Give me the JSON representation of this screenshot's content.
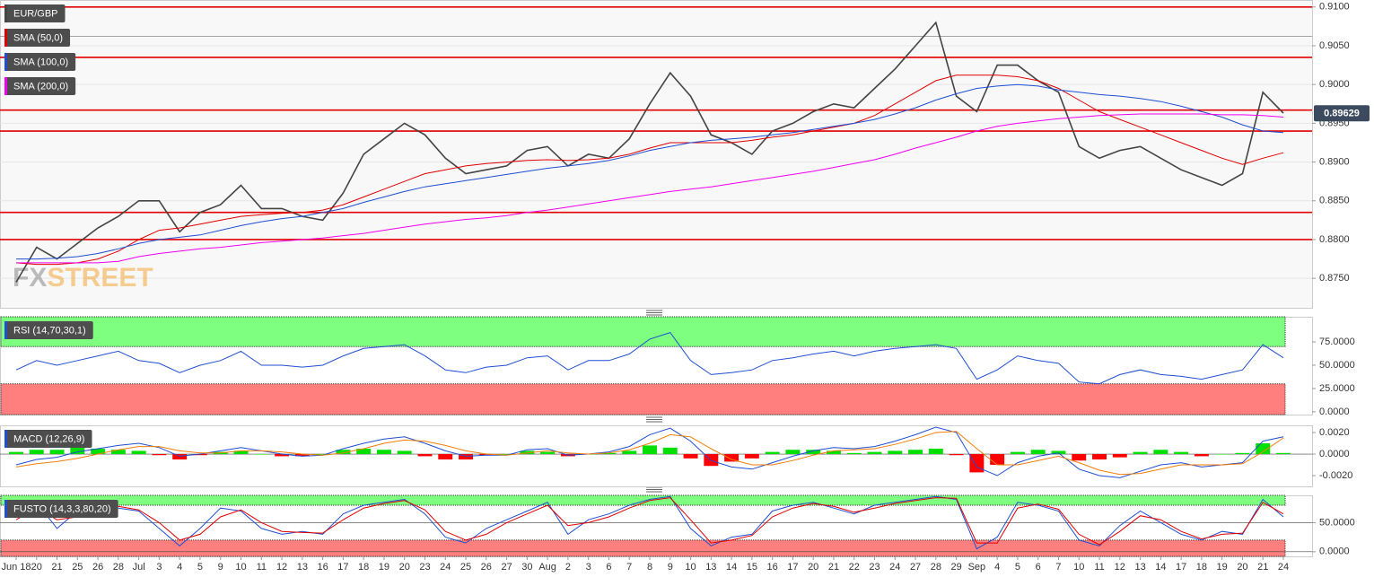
{
  "chart_data": [
    {
      "type": "line",
      "grid": true,
      "categories": [
        "Jun 18",
        "20",
        "21",
        "25",
        "26",
        "28",
        "Jul",
        "3",
        "4",
        "5",
        "9",
        "10",
        "11",
        "12",
        "13",
        "16",
        "17",
        "18",
        "19",
        "20",
        "23",
        "24",
        "25",
        "26",
        "27",
        "30",
        "Aug",
        "2",
        "3",
        "6",
        "7",
        "8",
        "9",
        "10",
        "13",
        "14",
        "15",
        "16",
        "17",
        "20",
        "21",
        "22",
        "23",
        "24",
        "27",
        "28",
        "29",
        "Sep",
        "4",
        "5",
        "6",
        "7",
        "10",
        "11",
        "12",
        "13",
        "14",
        "17",
        "18",
        "19",
        "20",
        "21",
        "24"
      ],
      "ylim": [
        0.8712,
        0.9109
      ],
      "yticks": [
        {
          "value": 0.91,
          "label": "0.9100"
        },
        {
          "value": 0.905,
          "label": "0.9050"
        },
        {
          "value": 0.9,
          "label": "0.9000"
        },
        {
          "value": 0.895,
          "label": "0.8950"
        },
        {
          "value": 0.89,
          "label": "0.8900"
        },
        {
          "value": 0.885,
          "label": "0.8850"
        },
        {
          "value": 0.88,
          "label": "0.8800"
        },
        {
          "value": 0.875,
          "label": "0.8750"
        }
      ],
      "levels": [
        0.91,
        0.9035,
        0.8967,
        0.894,
        0.8835,
        0.88
      ],
      "level_color": "#e00000",
      "ref_levels": [
        0.9062
      ],
      "ref_color": "#888888",
      "last_price": 0.89629,
      "watermark": [
        "FX",
        "STREET"
      ],
      "series": [
        {
          "name": "EUR/GBP",
          "color": "#444444",
          "values": [
            0.8745,
            0.879,
            0.8775,
            0.8795,
            0.8815,
            0.883,
            0.885,
            0.885,
            0.881,
            0.8835,
            0.8845,
            0.887,
            0.884,
            0.884,
            0.883,
            0.8825,
            0.886,
            0.891,
            0.893,
            0.895,
            0.8935,
            0.8905,
            0.8885,
            0.889,
            0.8895,
            0.8915,
            0.892,
            0.8895,
            0.891,
            0.8905,
            0.893,
            0.8975,
            0.9015,
            0.8985,
            0.8935,
            0.8925,
            0.891,
            0.894,
            0.895,
            0.8965,
            0.8975,
            0.897,
            0.8995,
            0.902,
            0.905,
            0.908,
            0.8985,
            0.8965,
            0.9025,
            0.9025,
            0.9005,
            0.899,
            0.892,
            0.8905,
            0.8915,
            0.892,
            0.8905,
            0.889,
            0.888,
            0.887,
            0.8885,
            0.899,
            0.8963
          ]
        },
        {
          "name": "SMA (50,0)",
          "color": "#e00000",
          "values": [
            0.877,
            0.8768,
            0.8768,
            0.877,
            0.8775,
            0.8785,
            0.88,
            0.8812,
            0.8815,
            0.882,
            0.8825,
            0.883,
            0.8832,
            0.8834,
            0.8835,
            0.8838,
            0.8845,
            0.8855,
            0.8865,
            0.8875,
            0.8885,
            0.889,
            0.8895,
            0.8898,
            0.89,
            0.8902,
            0.8903,
            0.8902,
            0.8903,
            0.8905,
            0.891,
            0.8918,
            0.8925,
            0.8925,
            0.8925,
            0.8925,
            0.8928,
            0.8932,
            0.8935,
            0.894,
            0.8945,
            0.895,
            0.896,
            0.8975,
            0.899,
            0.9005,
            0.9012,
            0.9012,
            0.9012,
            0.901,
            0.9005,
            0.8995,
            0.898,
            0.8965,
            0.8955,
            0.8945,
            0.8935,
            0.8925,
            0.8915,
            0.8905,
            0.8897,
            0.8905,
            0.8912
          ]
        },
        {
          "name": "SMA (100,0)",
          "color": "#1f4fd1",
          "values": [
            0.8775,
            0.8775,
            0.8776,
            0.8778,
            0.8782,
            0.8788,
            0.8795,
            0.88,
            0.8803,
            0.8806,
            0.8812,
            0.8818,
            0.8823,
            0.8827,
            0.883,
            0.8835,
            0.884,
            0.8848,
            0.8855,
            0.8862,
            0.8868,
            0.8872,
            0.8876,
            0.888,
            0.8884,
            0.8888,
            0.8892,
            0.8895,
            0.8898,
            0.8902,
            0.8908,
            0.8915,
            0.892,
            0.8925,
            0.8928,
            0.893,
            0.8932,
            0.8935,
            0.8938,
            0.8942,
            0.8946,
            0.895,
            0.8955,
            0.8962,
            0.897,
            0.898,
            0.8988,
            0.8995,
            0.8998,
            0.9,
            0.8998,
            0.8993,
            0.899,
            0.8987,
            0.8985,
            0.8982,
            0.8978,
            0.8972,
            0.8965,
            0.8958,
            0.8948,
            0.894,
            0.8938
          ]
        },
        {
          "name": "SMA (200,0)",
          "color": "#ee00ee",
          "values": [
            0.877,
            0.877,
            0.877,
            0.877,
            0.877,
            0.8772,
            0.8778,
            0.8782,
            0.8785,
            0.8788,
            0.879,
            0.8793,
            0.8796,
            0.8798,
            0.88,
            0.8802,
            0.8805,
            0.8808,
            0.8812,
            0.8816,
            0.882,
            0.8823,
            0.8826,
            0.8828,
            0.8831,
            0.8835,
            0.8838,
            0.8842,
            0.8846,
            0.885,
            0.8854,
            0.8858,
            0.8862,
            0.8865,
            0.8868,
            0.8872,
            0.8876,
            0.888,
            0.8884,
            0.8888,
            0.8893,
            0.8898,
            0.8903,
            0.891,
            0.8918,
            0.8925,
            0.8932,
            0.894,
            0.8946,
            0.895,
            0.8953,
            0.8956,
            0.8958,
            0.896,
            0.8961,
            0.8962,
            0.8962,
            0.8962,
            0.8962,
            0.8961,
            0.8961,
            0.896,
            0.8958
          ]
        }
      ]
    },
    {
      "type": "line",
      "title": "RSI (14,70,30,1)",
      "ylim": [
        -3,
        102
      ],
      "yticks": [
        {
          "value": 75,
          "label": "75.0000"
        },
        {
          "value": 50,
          "label": "50.0000"
        },
        {
          "value": 25,
          "label": "25.0000"
        },
        {
          "value": 0,
          "label": "0.0000"
        }
      ],
      "bands": [
        30,
        70
      ],
      "band_colors": [
        "#ff7f7f",
        "#7fff7f"
      ],
      "series": [
        {
          "color": "#1f4fd1",
          "values": [
            45,
            55,
            50,
            55,
            60,
            65,
            55,
            52,
            42,
            50,
            55,
            65,
            50,
            50,
            48,
            50,
            60,
            68,
            70,
            72,
            60,
            45,
            42,
            48,
            50,
            58,
            60,
            45,
            55,
            55,
            62,
            78,
            85,
            55,
            40,
            42,
            45,
            55,
            58,
            62,
            65,
            60,
            65,
            68,
            70,
            72,
            68,
            35,
            45,
            60,
            55,
            52,
            32,
            30,
            40,
            45,
            40,
            38,
            35,
            40,
            45,
            72,
            58
          ]
        }
      ]
    },
    {
      "type": "line",
      "title": "MACD (12,26,9)",
      "ylim": [
        -0.003,
        0.00267
      ],
      "yticks": [
        {
          "value": 0.002,
          "label": "0.0020"
        },
        {
          "value": 0,
          "label": "0.0000"
        },
        {
          "value": -0.002,
          "label": "-0.0020"
        }
      ],
      "series": [
        {
          "kind": "bar",
          "colors": [
            "#00e000",
            "#ff0000"
          ],
          "values": [
            0.0002,
            0.0004,
            0.0004,
            0.0006,
            0.0005,
            0.0004,
            0.0003,
            -0.0001,
            -0.0005,
            -0.0001,
            0.0002,
            0.0003,
            0,
            -0.0002,
            -0.0002,
            0,
            0.0004,
            0.0005,
            0.0004,
            0.0003,
            -0.0002,
            -0.0005,
            -0.0005,
            -0.0001,
            0,
            0.0003,
            0.0002,
            -0.0002,
            0,
            0.0001,
            0.0003,
            0.0008,
            0.0006,
            -0.0004,
            -0.0011,
            -0.0007,
            -0.0004,
            0.0002,
            0.0004,
            0.0004,
            0.0003,
            0.0001,
            0.0002,
            0.0003,
            0.0004,
            0.0005,
            -0.0001,
            -0.0017,
            -0.001,
            0.0002,
            0.0004,
            0.0003,
            -0.0006,
            -0.0005,
            -0.0003,
            0.0002,
            0.0004,
            0.0002,
            -0.0002,
            0,
            0.0001,
            0.001,
            0.0001
          ]
        },
        {
          "color": "#1f4fd1",
          "values": [
            -0.001,
            -0.0005,
            -0.0003,
            0.0002,
            0.0005,
            0.0008,
            0.001,
            0.0006,
            -0.0002,
            0,
            0.0003,
            0.0006,
            0.0003,
            0,
            -0.0002,
            -0.0001,
            0.0005,
            0.001,
            0.0014,
            0.0016,
            0.001,
            0.0003,
            -0.0002,
            -0.0001,
            -0.0001,
            0.0004,
            0.0005,
            -0.0001,
            0,
            0.0002,
            0.0007,
            0.0018,
            0.0024,
            0.0012,
            -0.0006,
            -0.0012,
            -0.0014,
            -0.0008,
            -0.0002,
            0.0003,
            0.0006,
            0.0005,
            0.0007,
            0.0012,
            0.0018,
            0.0025,
            0.002,
            -0.0012,
            -0.002,
            -0.0008,
            -0.0002,
            0.0001,
            -0.0014,
            -0.002,
            -0.0022,
            -0.0016,
            -0.001,
            -0.0008,
            -0.0012,
            -0.001,
            -0.0008,
            0.0012,
            0.0016
          ]
        },
        {
          "color": "#f07f09",
          "values": [
            -0.0012,
            -0.0009,
            -0.0007,
            -0.0004,
            0,
            0.0004,
            0.0007,
            0.0007,
            0.0003,
            0.0001,
            0.0001,
            0.0003,
            0.0003,
            0.0002,
            0,
            -0.0001,
            0.0001,
            0.0005,
            0.001,
            0.0013,
            0.0012,
            0.0008,
            0.0003,
            0,
            -0.0001,
            0.0001,
            0.0003,
            0.0001,
            0,
            0.0001,
            0.0004,
            0.001,
            0.0018,
            0.0016,
            0.0005,
            -0.0005,
            -0.001,
            -0.001,
            -0.0006,
            -0.0001,
            0.0003,
            0.0004,
            0.0005,
            0.0009,
            0.0014,
            0.002,
            0.0021,
            0.0005,
            -0.001,
            -0.001,
            -0.0006,
            -0.0002,
            -0.0008,
            -0.0015,
            -0.0019,
            -0.0018,
            -0.0014,
            -0.001,
            -0.001,
            -0.001,
            -0.0009,
            0.0002,
            0.0015
          ]
        }
      ]
    },
    {
      "type": "line",
      "title": "FUSTO (14,3,3,80,20)",
      "ylim": [
        -8,
        97
      ],
      "yticks": [
        {
          "value": 50,
          "label": "50.0000"
        },
        {
          "value": 0,
          "label": "0.0000"
        }
      ],
      "bands": [
        20,
        80
      ],
      "band_colors": [
        "#ff7f7f",
        "#7fff7f"
      ],
      "series": [
        {
          "color": "#1f4fd1",
          "values": [
            60,
            85,
            40,
            70,
            80,
            75,
            70,
            40,
            10,
            40,
            75,
            70,
            40,
            30,
            35,
            30,
            65,
            80,
            85,
            90,
            65,
            25,
            15,
            40,
            55,
            70,
            85,
            30,
            55,
            65,
            80,
            90,
            95,
            40,
            10,
            25,
            30,
            70,
            80,
            85,
            75,
            65,
            80,
            85,
            90,
            95,
            90,
            5,
            25,
            85,
            80,
            70,
            20,
            10,
            45,
            70,
            50,
            30,
            20,
            35,
            30,
            90,
            60
          ]
        },
        {
          "color": "#e00000",
          "values": [
            55,
            75,
            55,
            60,
            75,
            78,
            72,
            50,
            20,
            30,
            60,
            72,
            50,
            35,
            33,
            32,
            55,
            75,
            83,
            88,
            72,
            35,
            20,
            30,
            50,
            65,
            80,
            45,
            50,
            60,
            75,
            88,
            93,
            55,
            15,
            20,
            28,
            60,
            75,
            83,
            78,
            68,
            75,
            83,
            88,
            93,
            92,
            15,
            15,
            75,
            82,
            73,
            30,
            12,
            35,
            62,
            55,
            35,
            22,
            30,
            32,
            85,
            65
          ]
        }
      ]
    }
  ]
}
